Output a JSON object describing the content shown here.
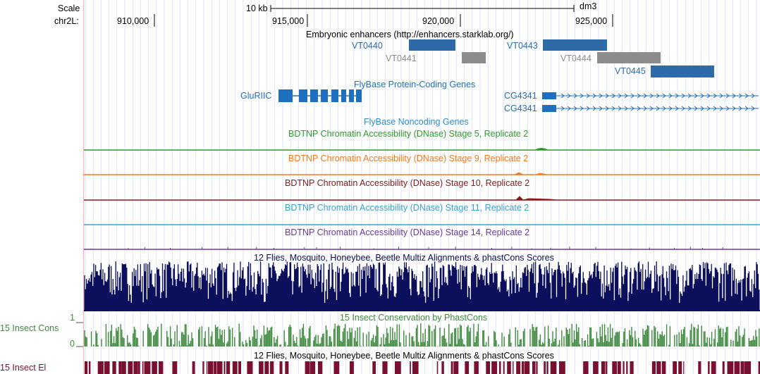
{
  "scale": {
    "label": "Scale",
    "bar_label": "10 kb",
    "assembly": "dm3"
  },
  "ruler": {
    "chrom_label": "chr2L:",
    "ticks": [
      "910,000",
      "915,000",
      "920,000",
      "925,000"
    ]
  },
  "enhancers": {
    "title": "Embryonic enhancers (http://enhancers.starklab.org/)",
    "items": [
      {
        "name": "VT0440",
        "color": "#2e6aa8"
      },
      {
        "name": "VT0441",
        "color": "#8c8c8c"
      },
      {
        "name": "VT0443",
        "color": "#2e6aa8"
      },
      {
        "name": "VT0444",
        "color": "#8c8c8c"
      },
      {
        "name": "VT0445",
        "color": "#2e6aa8"
      }
    ]
  },
  "flybase_coding": {
    "title": "FlyBase Protein-Coding Genes",
    "genes": [
      "GluRIIC",
      "CG4341",
      "CG4341"
    ],
    "color": "#1f6fc0"
  },
  "flybase_noncoding": {
    "title": "FlyBase Noncoding Genes",
    "color": "#2e8ccf"
  },
  "dnase_tracks": [
    {
      "title": "BDTNP Chromatin Accessibility (DNase) Stage 5, Replicate 2",
      "color": "#2f9a2f"
    },
    {
      "title": "BDTNP Chromatin Accessibility (DNase) Stage 9, Replicate 2",
      "color": "#f07a20"
    },
    {
      "title": "BDTNP Chromatin Accessibility (DNase) Stage 10, Replicate 2",
      "color": "#8b1a1a"
    },
    {
      "title": "BDTNP Chromatin Accessibility (DNase) Stage 11, Replicate 2",
      "color": "#3aa0d0"
    },
    {
      "title": "BDTNP Chromatin Accessibility (DNase) Stage 14, Replicate 2",
      "color": "#6a3aa0"
    }
  ],
  "multiz": {
    "title": "12 Flies, Mosquito, Honeybee, Beetle Multiz Alignments & phastCons Scores",
    "color": "#0b0f5c"
  },
  "phastcons": {
    "title": "15 Insect Conservation by PhastCons",
    "side_label": "15 Insect Cons",
    "axis_max": "1",
    "axis_min": "0",
    "color": "#3f8a3f"
  },
  "elements": {
    "title": "12 Flies, Mosquito, Honeybee, Beetle Multiz Alignments & phastCons Scores",
    "side_label": "15 Insect El",
    "color": "#7a1030"
  }
}
